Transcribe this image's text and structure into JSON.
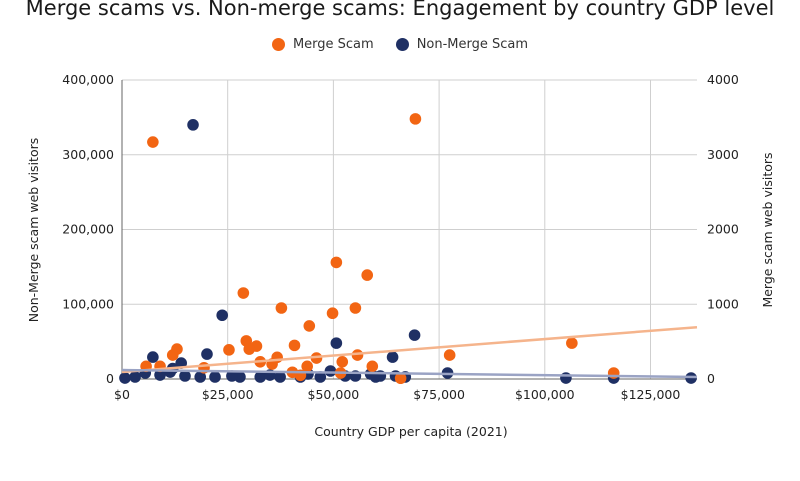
{
  "chart_data": {
    "type": "scatter",
    "title": "Merge scams vs. Non-merge scams: Engagement by country GDP level",
    "xlabel": "Country GDP per capita (2021)",
    "ylabel_left": "Non-Merge scam web visitors",
    "ylabel_right": "Merge scam web visitors",
    "xlim": [
      0,
      136000
    ],
    "ylim_left": [
      0,
      400000
    ],
    "ylim_right": [
      0,
      4000
    ],
    "grid": true,
    "legend_position": "top-center",
    "x_ticks": [
      {
        "v": 0,
        "label": "$0"
      },
      {
        "v": 25000,
        "label": "$25,000"
      },
      {
        "v": 50000,
        "label": "$50,000"
      },
      {
        "v": 75000,
        "label": "$75,000"
      },
      {
        "v": 100000,
        "label": "$100,000"
      },
      {
        "v": 125000,
        "label": "$125,000"
      }
    ],
    "y_ticks_left": [
      {
        "v": 0,
        "label": "0"
      },
      {
        "v": 100000,
        "label": "100,000"
      },
      {
        "v": 200000,
        "label": "200,000"
      },
      {
        "v": 300000,
        "label": "300,000"
      },
      {
        "v": 400000,
        "label": "400,000"
      }
    ],
    "y_ticks_right": [
      {
        "v": 0,
        "label": "0"
      },
      {
        "v": 1000,
        "label": "1000"
      },
      {
        "v": 2000,
        "label": "2000"
      },
      {
        "v": 3000,
        "label": "3000"
      },
      {
        "v": 4000,
        "label": "4000"
      }
    ],
    "series": [
      {
        "name": "Merge Scam",
        "axis": "right",
        "color": "#f26513",
        "trend": [
          [
            0,
            93
          ],
          [
            136000,
            693
          ]
        ],
        "points": [
          [
            7300,
            3170
          ],
          [
            69400,
            3480
          ],
          [
            50700,
            1560
          ],
          [
            58000,
            1390
          ],
          [
            28700,
            1150
          ],
          [
            37700,
            950
          ],
          [
            55200,
            950
          ],
          [
            49800,
            880
          ],
          [
            44300,
            710
          ],
          [
            40800,
            450
          ],
          [
            29400,
            510
          ],
          [
            31800,
            440
          ],
          [
            13000,
            400
          ],
          [
            12000,
            320
          ],
          [
            25300,
            390
          ],
          [
            30100,
            400
          ],
          [
            36700,
            290
          ],
          [
            35500,
            200
          ],
          [
            32700,
            230
          ],
          [
            46000,
            280
          ],
          [
            52100,
            230
          ],
          [
            55700,
            320
          ],
          [
            59200,
            170
          ],
          [
            43800,
            170
          ],
          [
            77500,
            320
          ],
          [
            106400,
            480
          ],
          [
            116300,
            80
          ],
          [
            5700,
            170
          ],
          [
            9000,
            170
          ],
          [
            19400,
            150
          ],
          [
            42200,
            50
          ],
          [
            65900,
            10
          ],
          [
            51700,
            80
          ],
          [
            40300,
            90
          ]
        ]
      },
      {
        "name": "Non-Merge Scam",
        "axis": "left",
        "color": "#1f3064",
        "trend": [
          [
            0,
            12000
          ],
          [
            136000,
            2700
          ]
        ],
        "points": [
          [
            16800,
            340000
          ],
          [
            23700,
            85300
          ],
          [
            50700,
            48000
          ],
          [
            69200,
            58700
          ],
          [
            7300,
            29300
          ],
          [
            20100,
            33300
          ],
          [
            14000,
            21300
          ],
          [
            64000,
            29300
          ],
          [
            77000,
            8000
          ],
          [
            105000,
            1300
          ],
          [
            116300,
            1300
          ],
          [
            134600,
            1300
          ],
          [
            700,
            1300
          ],
          [
            3100,
            2700
          ],
          [
            5500,
            8000
          ],
          [
            9000,
            5300
          ],
          [
            11400,
            9300
          ],
          [
            14900,
            4000
          ],
          [
            18500,
            2700
          ],
          [
            22000,
            2700
          ],
          [
            27900,
            2700
          ],
          [
            32700,
            2700
          ],
          [
            37400,
            2700
          ],
          [
            42200,
            2700
          ],
          [
            46900,
            2700
          ],
          [
            49300,
            10700
          ],
          [
            52800,
            4000
          ],
          [
            55200,
            4000
          ],
          [
            58800,
            6700
          ],
          [
            61100,
            4000
          ],
          [
            64700,
            4000
          ],
          [
            67000,
            2700
          ],
          [
            12000,
            14000
          ],
          [
            26000,
            4000
          ],
          [
            35000,
            5300
          ],
          [
            44000,
            6700
          ],
          [
            60000,
            2700
          ]
        ]
      }
    ]
  }
}
